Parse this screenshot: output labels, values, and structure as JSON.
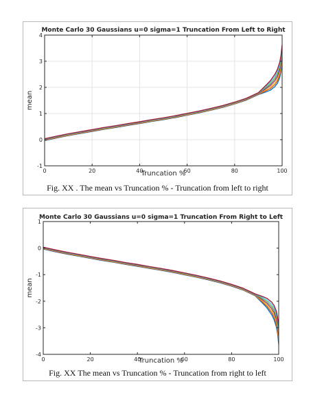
{
  "chart_data": [
    {
      "type": "line",
      "title": "Monte Carlo 30 Gaussians u=0 sigma=1 Truncation From Left to Right",
      "xlabel": "Truncation %",
      "ylabel": "mean",
      "xlim": [
        0,
        100
      ],
      "ylim": [
        -1,
        4
      ],
      "xticks": [
        "0",
        "20",
        "40",
        "60",
        "80",
        "100"
      ],
      "yticks": [
        "-1",
        "0",
        "1",
        "2",
        "3",
        "4"
      ],
      "grid": true,
      "caption": "Fig. XX . The mean vs Truncation % - Truncation from left to right",
      "series_colors": [
        "#0072bd",
        "#d95319",
        "#edb120",
        "#7e2f8e",
        "#77ac30",
        "#4dbeee",
        "#a2142f"
      ],
      "x": [
        0,
        5,
        10,
        15,
        20,
        25,
        30,
        35,
        40,
        45,
        50,
        55,
        60,
        65,
        70,
        75,
        80,
        85,
        90,
        93,
        95,
        97,
        98,
        99,
        99.5,
        100
      ],
      "y": [
        0.0,
        0.1,
        0.19,
        0.27,
        0.35,
        0.43,
        0.5,
        0.58,
        0.65,
        0.73,
        0.8,
        0.88,
        0.97,
        1.06,
        1.16,
        1.27,
        1.4,
        1.55,
        1.76,
        1.94,
        2.07,
        2.27,
        2.42,
        2.67,
        2.9,
        3.3
      ]
    },
    {
      "type": "line",
      "title": "Monte Carlo 30 Gaussians u=0 sigma=1 Truncation From Right to Left",
      "xlabel": "Truncation %",
      "ylabel": "mean",
      "xlim": [
        0,
        100
      ],
      "ylim": [
        -4,
        1
      ],
      "xticks": [
        "0",
        "20",
        "40",
        "60",
        "80",
        "100"
      ],
      "yticks": [
        "-4",
        "-3",
        "-2",
        "-1",
        "0",
        "1"
      ],
      "grid": false,
      "caption": "Fig. XX The mean vs Truncation % - Truncation from right to left",
      "series_colors": [
        "#0072bd",
        "#d95319",
        "#edb120",
        "#7e2f8e",
        "#77ac30",
        "#4dbeee",
        "#a2142f"
      ],
      "x": [
        0,
        5,
        10,
        15,
        20,
        25,
        30,
        35,
        40,
        45,
        50,
        55,
        60,
        65,
        70,
        75,
        80,
        85,
        90,
        93,
        95,
        97,
        98,
        99,
        99.5,
        100
      ],
      "y": [
        0.0,
        -0.1,
        -0.19,
        -0.27,
        -0.35,
        -0.43,
        -0.5,
        -0.58,
        -0.65,
        -0.73,
        -0.8,
        -0.88,
        -0.97,
        -1.06,
        -1.16,
        -1.27,
        -1.4,
        -1.55,
        -1.76,
        -1.94,
        -2.07,
        -2.27,
        -2.42,
        -2.67,
        -2.9,
        -3.3
      ]
    }
  ]
}
